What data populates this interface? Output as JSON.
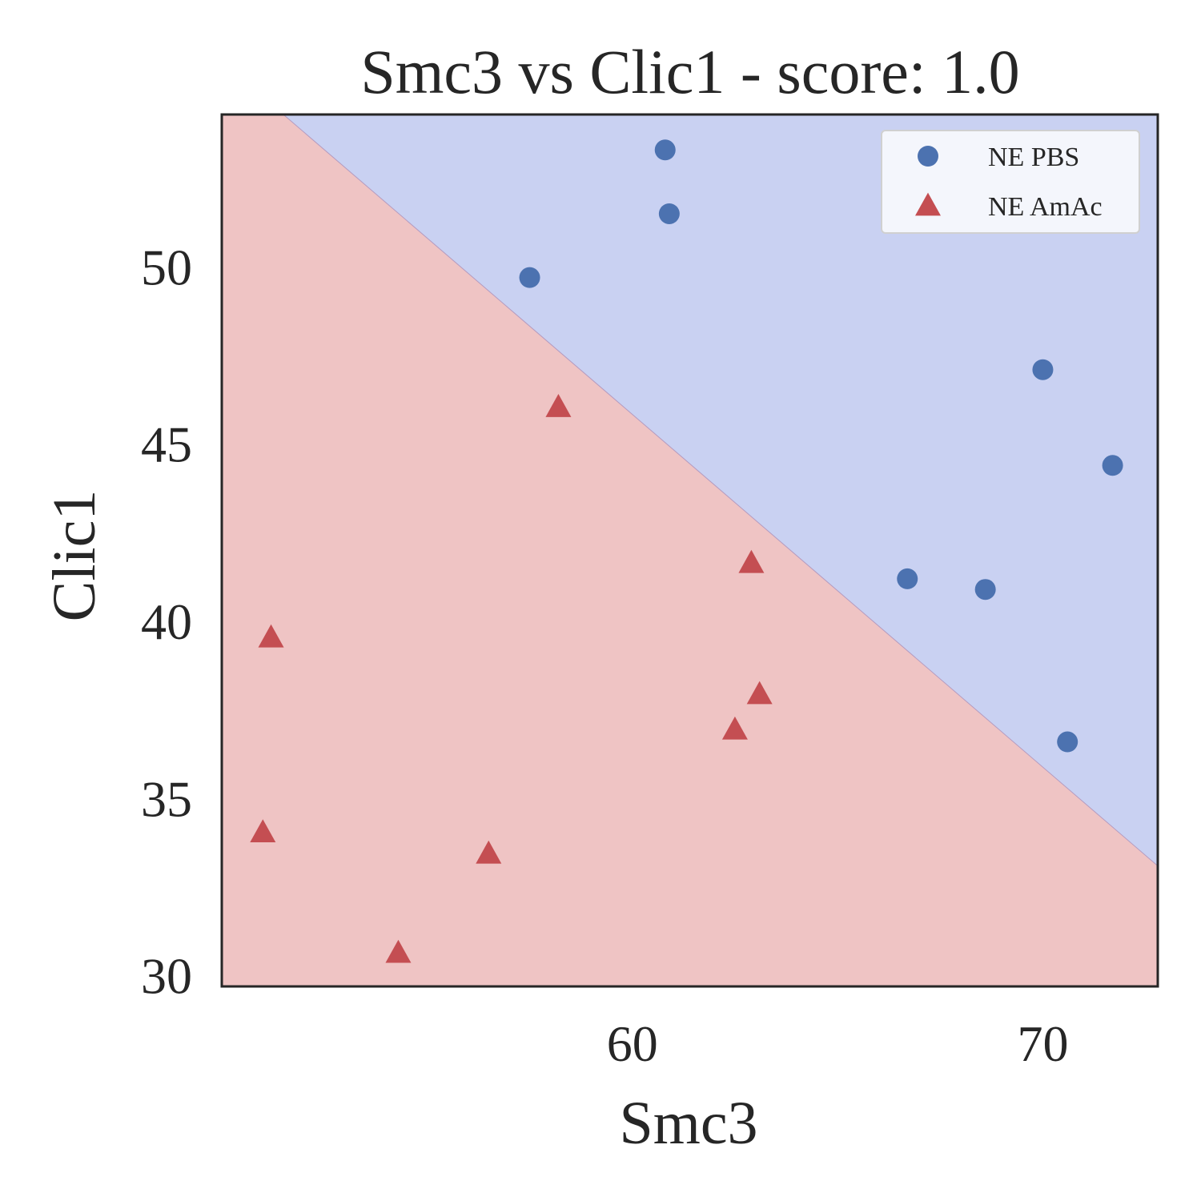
{
  "chart_data": {
    "type": "scatter",
    "title": "Smc3 vs Clic1 - score: 1.0",
    "xlabel": "Smc3",
    "ylabel": "Clic1",
    "xlim": [
      50.0,
      72.8
    ],
    "ylim": [
      29.7,
      54.3
    ],
    "xticks": [
      {
        "value": 60,
        "label": "60"
      },
      {
        "value": 70,
        "label": "70"
      }
    ],
    "yticks": [
      {
        "value": 30,
        "label": "30"
      },
      {
        "value": 35,
        "label": "35"
      },
      {
        "value": 40,
        "label": "40"
      },
      {
        "value": 45,
        "label": "45"
      },
      {
        "value": 50,
        "label": "50"
      }
    ],
    "grid": false,
    "legend_position": "top-right",
    "decision_boundary": {
      "points": [
        [
          51.5,
          54.3
        ],
        [
          72.8,
          33.1
        ]
      ],
      "upper_region_color": "#c9d1f2",
      "lower_region_color": "#efc4c4"
    },
    "series": [
      {
        "name": "NE PBS",
        "marker": "circle",
        "color": "#4c72b0",
        "points": [
          {
            "x": 60.8,
            "y": 53.3
          },
          {
            "x": 60.9,
            "y": 51.5
          },
          {
            "x": 57.5,
            "y": 49.7
          },
          {
            "x": 70.0,
            "y": 47.1
          },
          {
            "x": 71.7,
            "y": 44.4
          },
          {
            "x": 66.7,
            "y": 41.2
          },
          {
            "x": 68.6,
            "y": 40.9
          },
          {
            "x": 70.6,
            "y": 36.6
          }
        ]
      },
      {
        "name": "NE AmAc",
        "marker": "triangle",
        "color": "#c44e52",
        "points": [
          {
            "x": 58.2,
            "y": 46.0
          },
          {
            "x": 62.9,
            "y": 41.6
          },
          {
            "x": 51.2,
            "y": 39.5
          },
          {
            "x": 63.1,
            "y": 37.9
          },
          {
            "x": 62.5,
            "y": 36.9
          },
          {
            "x": 51.0,
            "y": 34.0
          },
          {
            "x": 56.5,
            "y": 33.4
          },
          {
            "x": 54.3,
            "y": 30.6
          }
        ]
      }
    ]
  }
}
